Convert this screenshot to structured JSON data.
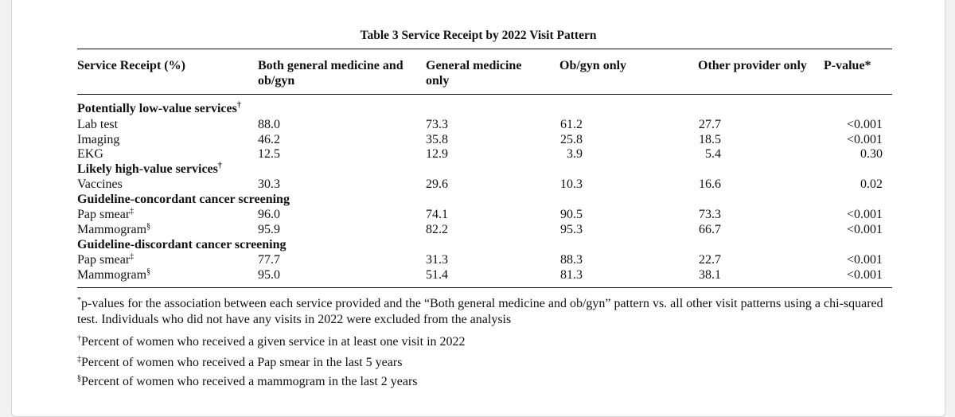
{
  "table": {
    "caption": "Table 3  Service Receipt by 2022 Visit Pattern",
    "header": {
      "col0": "Service Receipt (%)",
      "col1_line1": "Both general medicine and",
      "col1_line2": "ob/gyn",
      "col2_line1": "General medicine",
      "col2_line2": "only",
      "col3": "Ob/gyn only",
      "col4": "Other provider only",
      "col5": "P-value*"
    },
    "sections": [
      {
        "title": "Potentially low-value services",
        "mark": "†",
        "rows": [
          {
            "label": "Lab test",
            "mark": "",
            "both": "88.0",
            "gm": "73.3",
            "ob": "61.2",
            "other": "27.7",
            "p": "<0.001"
          },
          {
            "label": "Imaging",
            "mark": "",
            "both": "46.2",
            "gm": "35.8",
            "ob": "25.8",
            "other": "18.5",
            "p": "<0.001"
          },
          {
            "label": "EKG",
            "mark": "",
            "both": "12.5",
            "gm": "12.9",
            "ob": "3.9",
            "other": "5.4",
            "p": "0.30"
          }
        ]
      },
      {
        "title": "Likely high-value services",
        "mark": "†",
        "rows": [
          {
            "label": "Vaccines",
            "mark": "",
            "both": "30.3",
            "gm": "29.6",
            "ob": "10.3",
            "other": "16.6",
            "p": "0.02"
          }
        ]
      },
      {
        "title": "Guideline-concordant cancer screening",
        "mark": "",
        "rows": [
          {
            "label": "Pap smear",
            "mark": "‡",
            "both": "96.0",
            "gm": "74.1",
            "ob": "90.5",
            "other": "73.3",
            "p": "<0.001"
          },
          {
            "label": "Mammogram",
            "mark": "§",
            "both": "95.9",
            "gm": "82.2",
            "ob": "95.3",
            "other": "66.7",
            "p": "<0.001"
          }
        ]
      },
      {
        "title": "Guideline-discordant cancer screening",
        "mark": "",
        "rows": [
          {
            "label": "Pap smear",
            "mark": "‡",
            "both": "77.7",
            "gm": "31.3",
            "ob": "88.3",
            "other": "22.7",
            "p": "<0.001"
          },
          {
            "label": "Mammogram",
            "mark": "§",
            "both": "95.0",
            "gm": "51.4",
            "ob": "81.3",
            "other": "38.1",
            "p": "<0.001"
          }
        ]
      }
    ]
  },
  "footnotes": [
    {
      "mark": "*",
      "text": "p-values for the association between each service provided and the “Both general medicine and ob/gyn” pattern vs. all other visit patterns using a chi-squared test. Individuals who did not have any visits in 2022 were excluded from the analysis"
    },
    {
      "mark": "†",
      "text": "Percent of women who received a given service in at least one visit in 2022"
    },
    {
      "mark": "‡",
      "text": "Percent of women who received a Pap smear in the last 5 years"
    },
    {
      "mark": "§",
      "text": "Percent of women who received a mammogram in the last 2 years"
    }
  ]
}
